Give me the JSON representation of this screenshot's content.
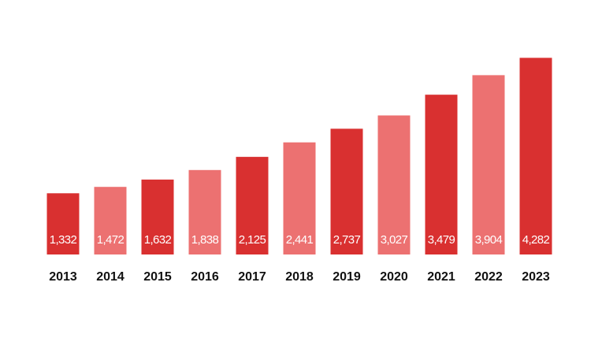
{
  "chart_data": {
    "type": "bar",
    "categories": [
      "2013",
      "2014",
      "2015",
      "2016",
      "2017",
      "2018",
      "2019",
      "2020",
      "2021",
      "2022",
      "2023"
    ],
    "values": [
      1332,
      1472,
      1632,
      1838,
      2125,
      2441,
      2737,
      3027,
      3479,
      3904,
      4282
    ],
    "value_labels": [
      "1,332",
      "1,472",
      "1,632",
      "1,838",
      "2,125",
      "2,441",
      "2,737",
      "3,027",
      "3,479",
      "3,904",
      "4,282"
    ],
    "bar_colors": [
      "#d93030",
      "#ec7171",
      "#d93030",
      "#ec7171",
      "#d93030",
      "#ec7171",
      "#d93030",
      "#ec7171",
      "#d93030",
      "#ec7171",
      "#d93030"
    ],
    "title": "",
    "xlabel": "",
    "ylabel": "",
    "grid": false,
    "legend": "none"
  }
}
